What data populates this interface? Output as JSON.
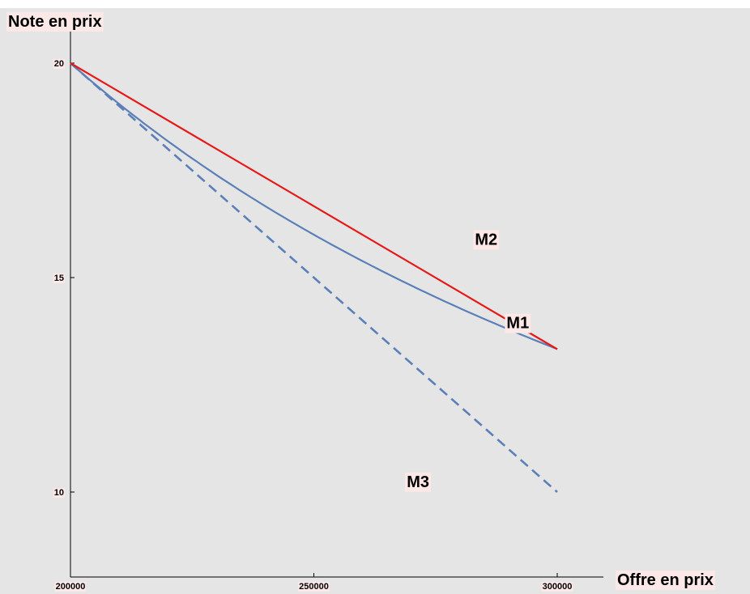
{
  "chart_data": {
    "type": "line",
    "xlabel": "Offre en prix",
    "ylabel": "Note en prix",
    "xlim": [
      200000,
      300000
    ],
    "ylim": [
      8.4,
      20.5
    ],
    "x_ticks": [
      "200000",
      "250000",
      "300000"
    ],
    "y_ticks": [
      "10",
      "15",
      "20"
    ],
    "grid": false,
    "legend": "none",
    "background": "#e5e5e5",
    "label_background": "#fde8e8",
    "series": [
      {
        "name": "M1",
        "style": "solid",
        "color": "#5b7fb8",
        "formula": "20 * 200000 / x",
        "x": [
          200000,
          210000,
          220000,
          230000,
          240000,
          250000,
          260000,
          270000,
          280000,
          290000,
          300000
        ],
        "y": [
          20.0,
          19.05,
          18.18,
          17.39,
          16.67,
          16.0,
          15.38,
          14.81,
          14.29,
          13.79,
          13.33
        ]
      },
      {
        "name": "M2",
        "style": "solid",
        "color": "#e81818",
        "x": [
          200000,
          300000
        ],
        "y": [
          20.0,
          13.33
        ]
      },
      {
        "name": "M3",
        "style": "dashed",
        "color": "#5b7fb8",
        "x": [
          200000,
          300000
        ],
        "y": [
          20.0,
          10.0
        ]
      }
    ]
  }
}
